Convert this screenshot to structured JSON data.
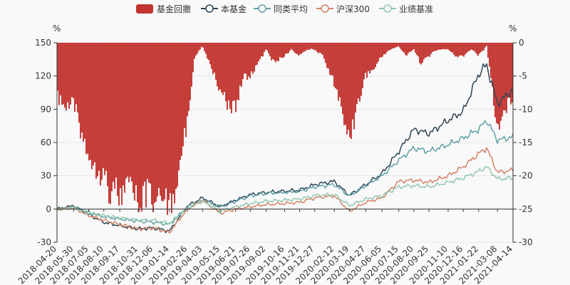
{
  "chart_data": {
    "type": "line",
    "legend": {
      "placement": "top-center",
      "items": [
        {
          "name": "基金回撤",
          "kind": "bar",
          "color": "#c23531"
        },
        {
          "name": "本基金",
          "kind": "line",
          "color": "#2f4554"
        },
        {
          "name": "同类平均",
          "kind": "line",
          "color": "#61a0a8"
        },
        {
          "name": "沪深300",
          "kind": "line",
          "color": "#d48265"
        },
        {
          "name": "业绩基准",
          "kind": "line",
          "color": "#91c7ae"
        }
      ]
    },
    "y_left": {
      "unit": "%",
      "min": -30,
      "max": 150,
      "ticks": [
        "-30",
        "0",
        "30",
        "60",
        "90",
        "120",
        "150"
      ]
    },
    "y_right": {
      "unit": "%",
      "min": -30,
      "max": 0,
      "ticks": [
        "-30",
        "-25",
        "-20",
        "-15",
        "-10",
        "-5",
        "0"
      ]
    },
    "x_labels": [
      "2018-04-20",
      "2018-05-30",
      "2018-07-05",
      "2018-08-10",
      "2018-09-17",
      "2018-10-31",
      "2018-12-06",
      "2019-01-14",
      "2019-02-26",
      "2019-04-03",
      "2019-05-15",
      "2019-06-21",
      "2019-07-26",
      "2019-09-02",
      "2019-10-16",
      "2019-11-21",
      "2019-12-27",
      "2020-02-12",
      "2020-03-19",
      "2020-04-27",
      "2020-06-05",
      "2020-07-15",
      "2020-08-20",
      "2020-09-25",
      "2020-11-10",
      "2020-12-16",
      "2021-01-22",
      "2021-03-08",
      "2021-04-14"
    ],
    "series": [
      {
        "name": "本基金",
        "color": "#2f4554",
        "x": [
          "2018-04-20",
          "2018-05-30",
          "2018-07-05",
          "2018-08-10",
          "2018-09-17",
          "2018-10-31",
          "2018-12-06",
          "2019-01-14",
          "2019-02-26",
          "2019-04-03",
          "2019-05-15",
          "2019-06-21",
          "2019-07-26",
          "2019-09-02",
          "2019-10-16",
          "2019-11-21",
          "2019-12-27",
          "2020-02-12",
          "2020-03-19",
          "2020-04-27",
          "2020-06-05",
          "2020-07-15",
          "2020-08-20",
          "2020-09-25",
          "2020-11-10",
          "2020-12-16",
          "2021-01-22",
          "2021-02-10",
          "2021-03-08",
          "2021-04-14"
        ],
        "values": [
          0,
          3,
          -5,
          -12,
          -15,
          -18,
          -17,
          -20,
          3,
          10,
          2,
          8,
          13,
          15,
          16,
          17,
          22,
          25,
          12,
          22,
          32,
          52,
          72,
          68,
          80,
          88,
          122,
          130,
          95,
          108
        ]
      },
      {
        "name": "同类平均",
        "color": "#61a0a8",
        "x": [
          "2018-04-20",
          "2018-05-30",
          "2018-07-05",
          "2018-08-10",
          "2018-09-17",
          "2018-10-31",
          "2018-12-06",
          "2019-01-14",
          "2019-02-26",
          "2019-04-03",
          "2019-05-15",
          "2019-06-21",
          "2019-07-26",
          "2019-09-02",
          "2019-10-16",
          "2019-11-21",
          "2019-12-27",
          "2020-02-12",
          "2020-03-19",
          "2020-04-27",
          "2020-06-05",
          "2020-07-15",
          "2020-08-20",
          "2020-09-25",
          "2020-11-10",
          "2020-12-16",
          "2021-01-22",
          "2021-02-10",
          "2021-03-08",
          "2021-04-14"
        ],
        "values": [
          0,
          2,
          -3,
          -7,
          -9,
          -11,
          -12,
          -14,
          2,
          8,
          2,
          7,
          12,
          14,
          15,
          16,
          20,
          22,
          12,
          21,
          30,
          44,
          55,
          52,
          58,
          64,
          72,
          80,
          62,
          65
        ]
      },
      {
        "name": "沪深300",
        "color": "#d48265",
        "x": [
          "2018-04-20",
          "2018-05-30",
          "2018-07-05",
          "2018-08-10",
          "2018-09-17",
          "2018-10-31",
          "2018-12-06",
          "2019-01-14",
          "2019-02-26",
          "2019-04-03",
          "2019-05-15",
          "2019-06-21",
          "2019-07-26",
          "2019-09-02",
          "2019-10-16",
          "2019-11-21",
          "2019-12-27",
          "2020-02-12",
          "2020-03-19",
          "2020-04-27",
          "2020-06-05",
          "2020-07-15",
          "2020-08-20",
          "2020-09-25",
          "2020-11-10",
          "2020-12-16",
          "2021-01-22",
          "2021-02-10",
          "2021-03-08",
          "2021-04-14"
        ],
        "values": [
          0,
          1,
          -6,
          -10,
          -14,
          -18,
          -17,
          -21,
          0,
          8,
          -4,
          0,
          2,
          4,
          5,
          6,
          10,
          12,
          -2,
          6,
          10,
          25,
          26,
          24,
          30,
          38,
          50,
          55,
          33,
          35
        ]
      },
      {
        "name": "业绩基准",
        "color": "#91c7ae",
        "x": [
          "2018-04-20",
          "2018-05-30",
          "2018-07-05",
          "2018-08-10",
          "2018-09-17",
          "2018-10-31",
          "2018-12-06",
          "2019-01-14",
          "2019-02-26",
          "2019-04-03",
          "2019-05-15",
          "2019-06-21",
          "2019-07-26",
          "2019-09-02",
          "2019-10-16",
          "2019-11-21",
          "2019-12-27",
          "2020-02-12",
          "2020-03-19",
          "2020-04-27",
          "2020-06-05",
          "2020-07-15",
          "2020-08-20",
          "2020-09-25",
          "2020-11-10",
          "2020-12-16",
          "2021-01-22",
          "2021-02-10",
          "2021-03-08",
          "2021-04-14"
        ],
        "values": [
          0,
          1,
          -4,
          -6,
          -8,
          -10,
          -10,
          -13,
          1,
          7,
          -2,
          2,
          5,
          7,
          8,
          9,
          12,
          13,
          3,
          9,
          12,
          20,
          21,
          20,
          24,
          28,
          34,
          38,
          27,
          28
        ]
      }
    ],
    "drawdown": {
      "name": "基金回撤",
      "color": "#c23531",
      "axis": "y_right",
      "x": [
        "2018-04-20",
        "2018-05-10",
        "2018-05-30",
        "2018-06-15",
        "2018-07-05",
        "2018-07-20",
        "2018-08-10",
        "2018-08-25",
        "2018-09-17",
        "2018-10-10",
        "2018-10-31",
        "2018-11-20",
        "2018-12-06",
        "2018-12-25",
        "2019-01-14",
        "2019-02-01",
        "2019-02-26",
        "2019-03-15",
        "2019-04-03",
        "2019-04-20",
        "2019-05-15",
        "2019-06-01",
        "2019-06-21",
        "2019-07-10",
        "2019-07-26",
        "2019-08-15",
        "2019-09-02",
        "2019-09-20",
        "2019-10-16",
        "2019-11-01",
        "2019-11-21",
        "2019-12-10",
        "2019-12-27",
        "2020-01-15",
        "2020-02-12",
        "2020-03-01",
        "2020-03-19",
        "2020-04-05",
        "2020-04-27",
        "2020-05-15",
        "2020-06-05",
        "2020-06-25",
        "2020-07-15",
        "2020-08-01",
        "2020-08-20",
        "2020-09-05",
        "2020-09-25",
        "2020-10-15",
        "2020-11-10",
        "2020-11-28",
        "2020-12-16",
        "2021-01-05",
        "2021-01-22",
        "2021-02-10",
        "2021-02-22",
        "2021-03-08",
        "2021-03-25",
        "2021-04-14"
      ],
      "values": [
        -8,
        -10,
        -9,
        -13,
        -17,
        -18,
        -20,
        -22,
        -23,
        -22,
        -24,
        -23,
        -24,
        -21,
        -26,
        -20,
        -12,
        -2,
        -0.5,
        -3,
        -7,
        -9,
        -10,
        -5,
        -5,
        -3,
        -1,
        -3,
        -2,
        -1,
        -2,
        -1,
        -1,
        -2,
        -6,
        -10,
        -15,
        -10,
        -5,
        -4,
        -2,
        -1,
        -0.5,
        -2,
        -1,
        -3,
        -2,
        -1,
        -1,
        -2,
        -2,
        -1,
        -2,
        -0.5,
        -6,
        -14,
        -10,
        -8
      ]
    }
  }
}
